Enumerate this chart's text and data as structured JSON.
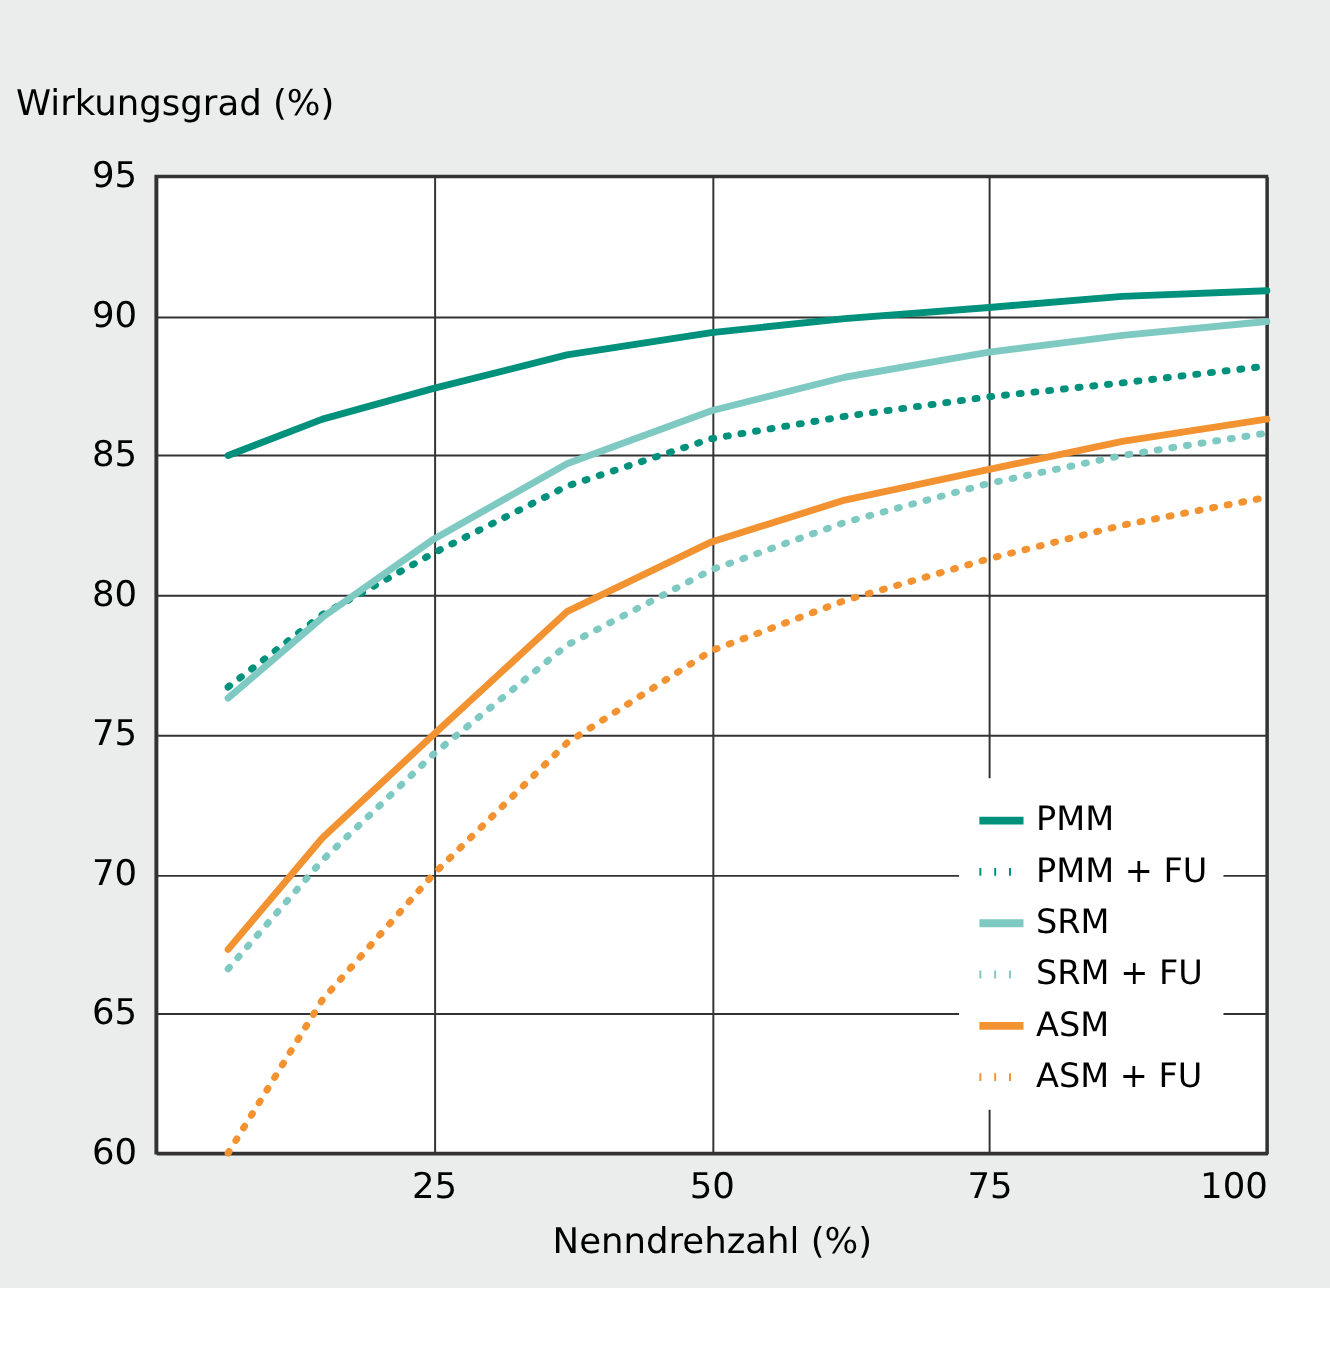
{
  "chart_data": {
    "type": "line",
    "xlabel": "Nenndrehzahl (%)",
    "ylabel": "Wirkungsgrad (%)",
    "x": [
      6.5,
      15,
      25,
      37,
      50,
      62,
      75,
      87,
      100
    ],
    "series": [
      {
        "name": "PMM",
        "color": "#00917c",
        "line_style": "solid",
        "values": [
          85,
          86.3,
          87.4,
          88.6,
          89.4,
          89.9,
          90.3,
          90.7,
          90.9
        ]
      },
      {
        "name": "PMM + FU",
        "color": "#00917c",
        "line_style": "dotted",
        "values": [
          76.7,
          79.3,
          81.5,
          83.9,
          85.6,
          86.4,
          87.1,
          87.6,
          88.2
        ]
      },
      {
        "name": "SRM",
        "color": "#7ecac3",
        "line_style": "solid",
        "values": [
          76.3,
          79.2,
          82,
          84.7,
          86.6,
          87.8,
          88.7,
          89.3,
          89.8
        ]
      },
      {
        "name": "SRM + FU",
        "color": "#7ecac3",
        "line_style": "dotted",
        "values": [
          66.6,
          70.5,
          74.3,
          78.2,
          80.9,
          82.6,
          84,
          85,
          85.8
        ]
      },
      {
        "name": "ASM",
        "color": "#f39231",
        "line_style": "solid",
        "values": [
          67.3,
          71.3,
          75,
          79.4,
          81.9,
          83.4,
          84.5,
          85.5,
          86.3
        ]
      },
      {
        "name": "ASM + FU",
        "color": "#f39231",
        "line_style": "dotted",
        "values": [
          60,
          65.5,
          70,
          74.7,
          78,
          79.8,
          81.3,
          82.5,
          83.5
        ]
      }
    ],
    "xlim": [
      0,
      100
    ],
    "xticks": [
      25,
      50,
      75,
      100
    ],
    "ylim": [
      60,
      95
    ],
    "yticks": [
      60,
      65,
      70,
      75,
      80,
      85,
      90,
      95
    ],
    "grid": true,
    "legend": "bottom right",
    "marker": "none"
  }
}
